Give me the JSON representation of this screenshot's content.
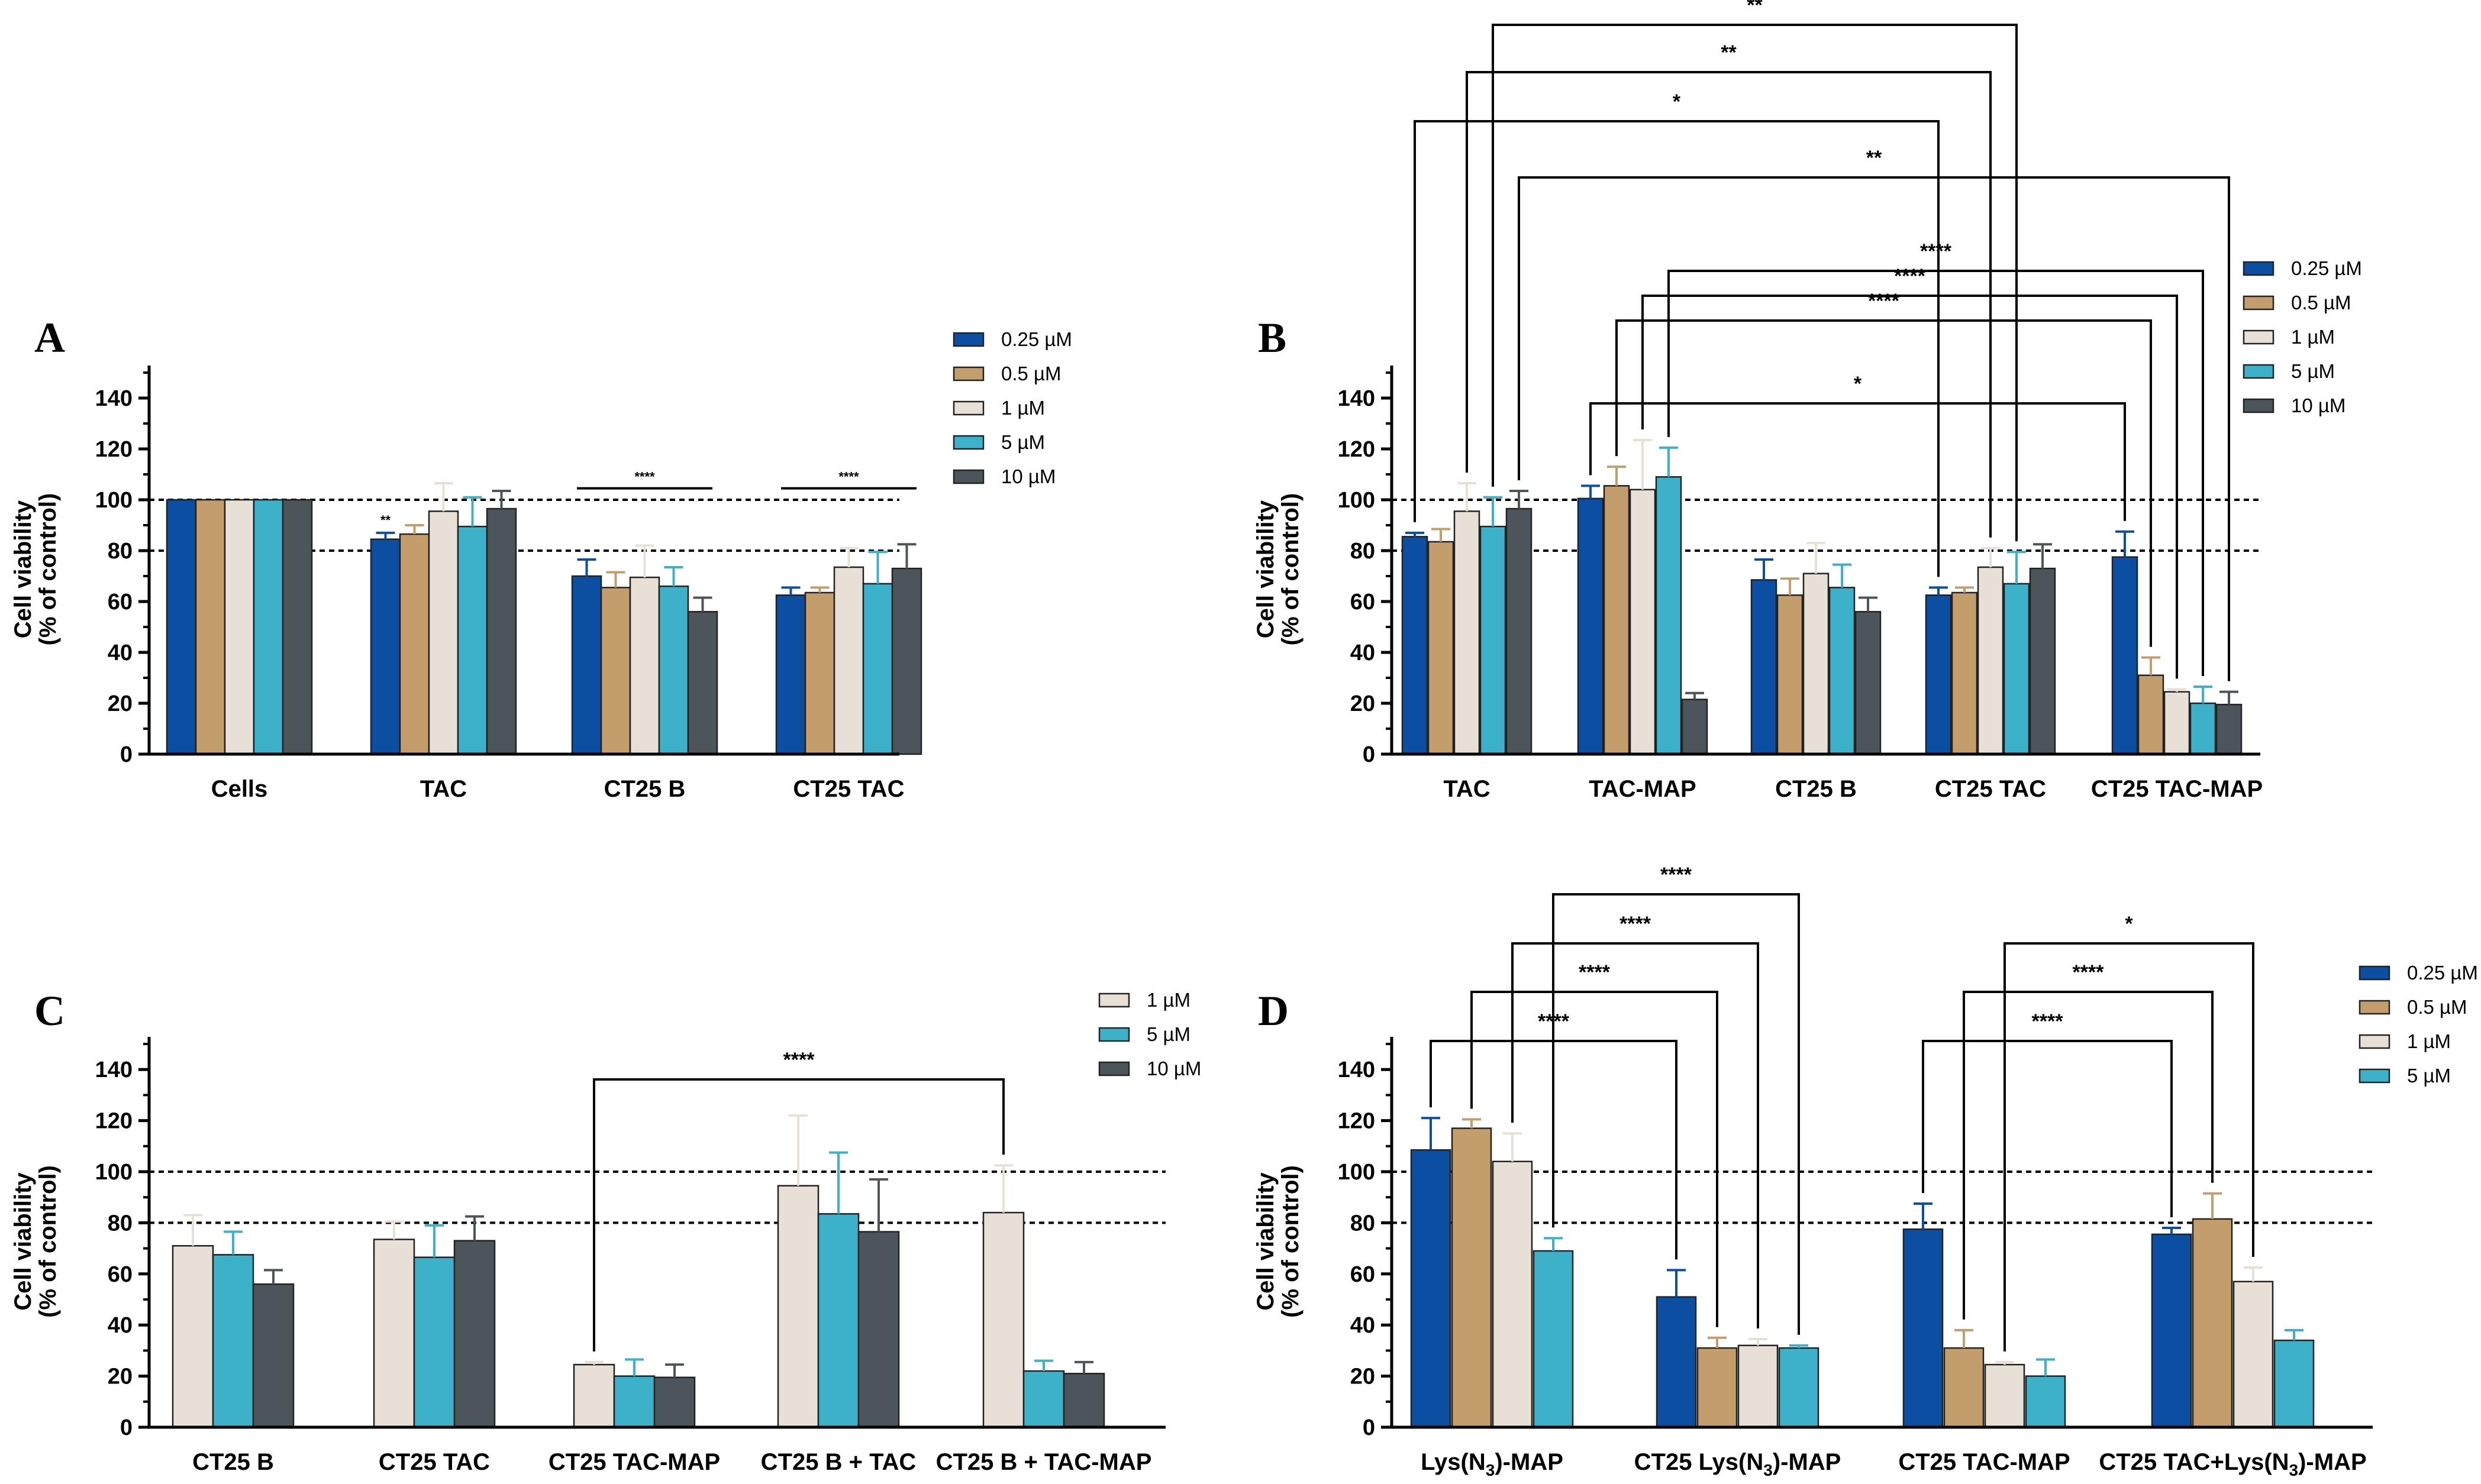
{
  "colors": {
    "0.25 µM": "#0b4ea2",
    "0.5 µM": "#c39e6c",
    "1 µM": "#e8e0d6",
    "5 µM": "#3eb1ca",
    "10 µM": "#4c5559"
  },
  "chart_data": [
    {
      "panel": "A",
      "type": "bar",
      "ylabel_line1": "Cell viability",
      "ylabel_line2": "(% of control)",
      "ylim": [
        0,
        150
      ],
      "yticks": [
        "0",
        "20",
        "40",
        "60",
        "80",
        "100",
        "120",
        "140"
      ],
      "reference_lines": [
        100,
        80
      ],
      "legend": [
        "0.25 µM",
        "0.5 µM",
        "1 µM",
        "5 µM",
        "10 µM"
      ],
      "categories": [
        "Cells",
        "TAC",
        "CT25 B",
        "CT25 TAC"
      ],
      "series": [
        {
          "name": "0.25 µM",
          "values": [
            100,
            84.5,
            70,
            62.5
          ],
          "errors": [
            0,
            2.5,
            6.5,
            3
          ]
        },
        {
          "name": "0.5 µM",
          "values": [
            100,
            86.5,
            65.5,
            63.5
          ],
          "errors": [
            0,
            3.5,
            6,
            2
          ]
        },
        {
          "name": "1 µM",
          "values": [
            100,
            95.5,
            69.5,
            73.5
          ],
          "errors": [
            0,
            11,
            12.5,
            7.5
          ]
        },
        {
          "name": "5 µM",
          "values": [
            100,
            89.5,
            66,
            67
          ],
          "errors": [
            0,
            11.5,
            7.5,
            12.5
          ]
        },
        {
          "name": "10 µM",
          "values": [
            100,
            96.5,
            56,
            73
          ],
          "errors": [
            0,
            7,
            5.5,
            9.5
          ]
        }
      ],
      "annotations": [
        {
          "label": "**",
          "category": 1,
          "bar": 0,
          "type": "text"
        },
        {
          "label": "****",
          "category": 2,
          "type": "line"
        },
        {
          "label": "****",
          "category": 3,
          "type": "line"
        }
      ]
    },
    {
      "panel": "B",
      "type": "bar",
      "ylabel_line1": "Cell viability",
      "ylabel_line2": "(% of control)",
      "ylim": [
        0,
        150
      ],
      "yticks": [
        "0",
        "20",
        "40",
        "60",
        "80",
        "100",
        "120",
        "140"
      ],
      "reference_lines": [
        100,
        80
      ],
      "legend": [
        "0.25 µM",
        "0.5 µM",
        "1 µM",
        "5 µM",
        "10 µM"
      ],
      "categories": [
        "TAC",
        "TAC-MAP",
        "CT25 B",
        "CT25 TAC",
        "CT25 TAC-MAP"
      ],
      "series": [
        {
          "name": "0.25 µM",
          "values": [
            85.5,
            100.5,
            68.5,
            62.5,
            77.5
          ],
          "errors": [
            1.5,
            5,
            8,
            3,
            10
          ]
        },
        {
          "name": "0.5 µM",
          "values": [
            83.5,
            105.5,
            62.5,
            63.5,
            31
          ],
          "errors": [
            5,
            7.5,
            6.5,
            2,
            7
          ]
        },
        {
          "name": "1 µM",
          "values": [
            95.5,
            104,
            71,
            73.5,
            24.5
          ],
          "errors": [
            11,
            19.5,
            12,
            7.5,
            1
          ]
        },
        {
          "name": "5 µM",
          "values": [
            89.5,
            109,
            65.5,
            67,
            20
          ],
          "errors": [
            11.5,
            11.5,
            9,
            12.5,
            6.5
          ]
        },
        {
          "name": "10 µM",
          "values": [
            96.5,
            21.5,
            56,
            73,
            19.5
          ],
          "errors": [
            7,
            2.5,
            5.5,
            9.5,
            5
          ]
        }
      ],
      "comparisons": [
        {
          "label": "*",
          "from": [
            1,
            0
          ],
          "to": [
            4,
            0
          ]
        },
        {
          "label": "****",
          "from": [
            1,
            1
          ],
          "to": [
            4,
            1
          ]
        },
        {
          "label": "****",
          "from": [
            1,
            2
          ],
          "to": [
            4,
            2
          ]
        },
        {
          "label": "****",
          "from": [
            1,
            3
          ],
          "to": [
            4,
            3
          ]
        },
        {
          "label": "**",
          "from": [
            0,
            4
          ],
          "to": [
            4,
            4
          ]
        },
        {
          "label": "*",
          "from": [
            0,
            0
          ],
          "to": [
            3,
            0
          ]
        },
        {
          "label": "**",
          "from": [
            0,
            2
          ],
          "to": [
            3,
            2
          ]
        },
        {
          "label": "**",
          "from": [
            0,
            3
          ],
          "to": [
            3,
            3
          ]
        }
      ]
    },
    {
      "panel": "C",
      "type": "bar",
      "ylabel_line1": "Cell viability",
      "ylabel_line2": "(% of control)",
      "ylim": [
        0,
        150
      ],
      "yticks": [
        "0",
        "20",
        "40",
        "60",
        "80",
        "100",
        "120",
        "140"
      ],
      "reference_lines": [
        100,
        80
      ],
      "legend": [
        "1 µM",
        "5 µM",
        "10 µM"
      ],
      "categories": [
        "CT25 B",
        "CT25 TAC",
        "CT25 TAC-MAP",
        "CT25 B + TAC",
        "CT25 B + TAC-MAP"
      ],
      "series": [
        {
          "name": "1 µM",
          "values": [
            71,
            73.5,
            24.5,
            94.5,
            84
          ],
          "errors": [
            12,
            7,
            1,
            27.5,
            18.5
          ]
        },
        {
          "name": "5 µM",
          "values": [
            67.5,
            66.5,
            20,
            83.5,
            22
          ],
          "errors": [
            9,
            12.5,
            6.5,
            24,
            4
          ]
        },
        {
          "name": "10 µM",
          "values": [
            56,
            73,
            19.5,
            76.5,
            21
          ],
          "errors": [
            5.5,
            9.5,
            5,
            20.5,
            4.5
          ]
        }
      ],
      "comparisons": [
        {
          "label": "****",
          "from": [
            2,
            0
          ],
          "to": [
            4,
            0
          ]
        }
      ]
    },
    {
      "panel": "D",
      "type": "bar",
      "ylabel_line1": "Cell viability",
      "ylabel_line2": "(% of control)",
      "ylim": [
        0,
        150
      ],
      "yticks": [
        "0",
        "20",
        "40",
        "60",
        "80",
        "100",
        "120",
        "140"
      ],
      "reference_lines": [
        100,
        80
      ],
      "legend": [
        "0.25 µM",
        "0.5 µM",
        "1 µM",
        "5 µM"
      ],
      "categories": [
        "Lys(N3)-MAP",
        "CT25 Lys(N3)-MAP",
        "CT25 TAC-MAP",
        "CT25 TAC+Lys(N3)-MAP"
      ],
      "category_labels": [
        {
          "pre": "Lys(N",
          "sub": "3",
          "post": ")-MAP"
        },
        {
          "pre": "CT25 Lys(N",
          "sub": "3",
          "post": ")-MAP"
        },
        {
          "pre": "CT25 TAC-MAP",
          "sub": "",
          "post": ""
        },
        {
          "pre": "CT25 TAC+Lys(N",
          "sub": "3",
          "post": ")-MAP"
        }
      ],
      "series": [
        {
          "name": "0.25 µM",
          "values": [
            108.5,
            51,
            77.5,
            75.5
          ],
          "errors": [
            12.5,
            10.5,
            10,
            2.5
          ]
        },
        {
          "name": "0.5 µM",
          "values": [
            117,
            31,
            31,
            81.5
          ],
          "errors": [
            3.5,
            4,
            7,
            10
          ]
        },
        {
          "name": "1 µM",
          "values": [
            104,
            32,
            24.5,
            57
          ],
          "errors": [
            11,
            2.5,
            1,
            5.5
          ]
        },
        {
          "name": "5 µM",
          "values": [
            69,
            31,
            20,
            34
          ],
          "errors": [
            5,
            1,
            6.5,
            4
          ]
        }
      ],
      "comparisons": [
        {
          "label": "****",
          "from": [
            0,
            0
          ],
          "to": [
            1,
            0
          ]
        },
        {
          "label": "****",
          "from": [
            0,
            1
          ],
          "to": [
            1,
            1
          ]
        },
        {
          "label": "****",
          "from": [
            0,
            2
          ],
          "to": [
            1,
            2
          ]
        },
        {
          "label": "****",
          "from": [
            0,
            3
          ],
          "to": [
            1,
            3
          ]
        },
        {
          "label": "****",
          "from": [
            2,
            0
          ],
          "to": [
            3,
            0
          ]
        },
        {
          "label": "****",
          "from": [
            2,
            1
          ],
          "to": [
            3,
            1
          ]
        },
        {
          "label": "*",
          "from": [
            2,
            2
          ],
          "to": [
            3,
            2
          ]
        }
      ]
    }
  ]
}
